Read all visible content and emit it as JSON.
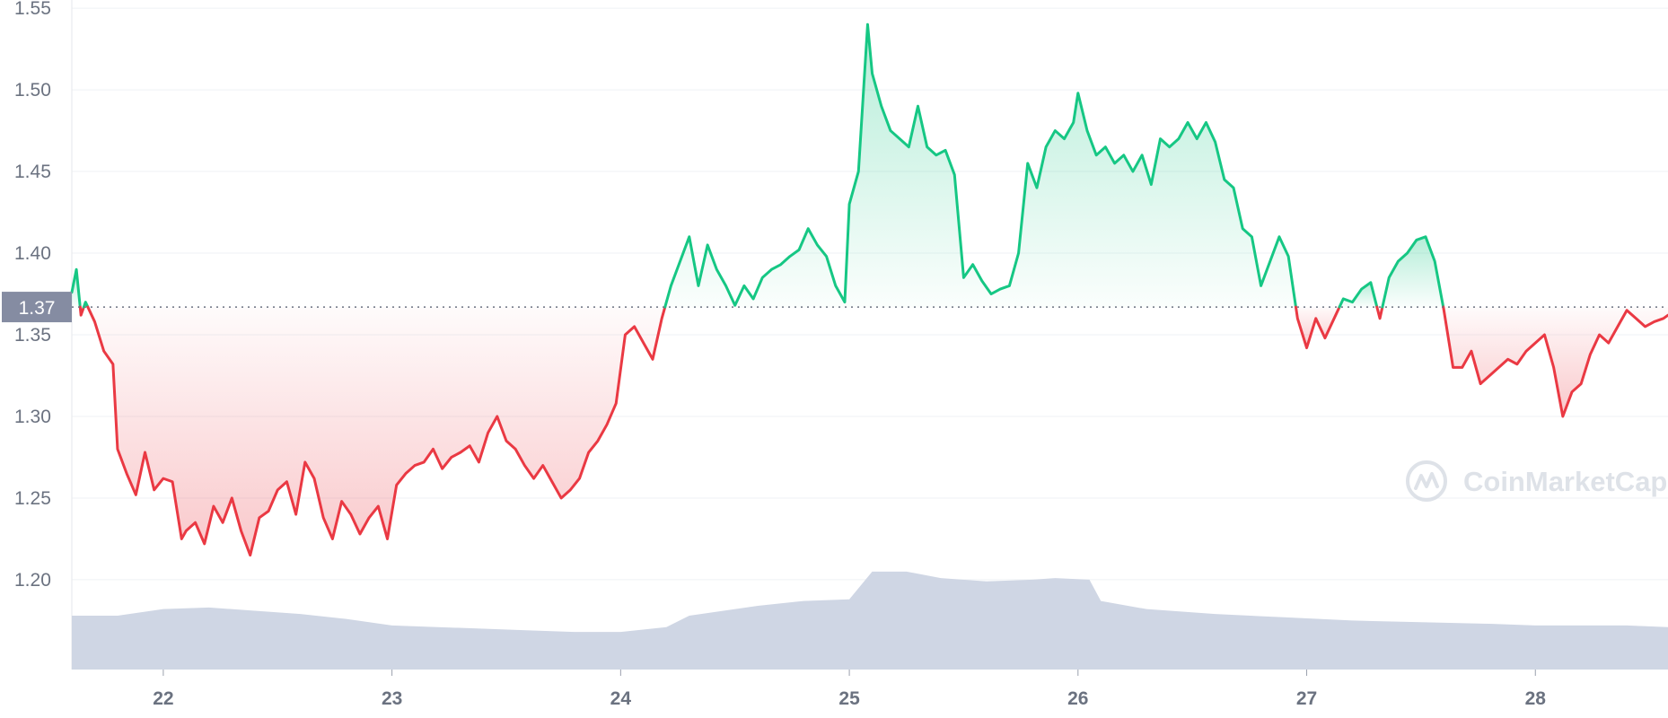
{
  "chart_data": {
    "type": "area",
    "title": "",
    "xlabel": "",
    "ylabel": "",
    "x_tick_labels": [
      "22",
      "23",
      "24",
      "25",
      "26",
      "27",
      "28"
    ],
    "x_range": [
      21.6,
      28.58
    ],
    "y_tick_labels": [
      "1.55",
      "1.50",
      "1.45",
      "1.40",
      "1.35",
      "1.30",
      "1.25",
      "1.20"
    ],
    "y_ticks": [
      1.55,
      1.5,
      1.45,
      1.4,
      1.35,
      1.3,
      1.25,
      1.2
    ],
    "ylim": [
      1.145,
      1.555
    ],
    "grid": true,
    "baseline": {
      "value": 1.367,
      "label": "1.37"
    },
    "colors": {
      "up": "#16c784",
      "down": "#ea3943",
      "volume": "#cfd6e4",
      "grid": "#eff2f5",
      "baseline_badge": "#858ca2"
    },
    "series": [
      {
        "type": "line",
        "x": [
          21.6,
          21.62,
          21.64,
          21.66,
          21.7,
          21.74,
          21.78,
          21.8,
          21.84,
          21.88,
          21.92,
          21.96,
          22.0,
          22.04,
          22.08,
          22.1,
          22.14,
          22.18,
          22.22,
          22.26,
          22.3,
          22.34,
          22.38,
          22.42,
          22.46,
          22.5,
          22.54,
          22.58,
          22.62,
          22.66,
          22.7,
          22.74,
          22.78,
          22.82,
          22.86,
          22.9,
          22.94,
          22.98,
          23.02,
          23.06,
          23.1,
          23.14,
          23.18,
          23.22,
          23.26,
          23.3,
          23.34,
          23.38,
          23.42,
          23.46,
          23.5,
          23.54,
          23.58,
          23.62,
          23.66,
          23.7,
          23.74,
          23.78,
          23.82,
          23.86,
          23.9,
          23.94,
          23.98,
          24.02,
          24.06,
          24.1,
          24.14,
          24.18,
          24.22,
          24.26,
          24.3,
          24.34,
          24.38,
          24.42,
          24.46,
          24.5,
          24.54,
          24.58,
          24.62,
          24.66,
          24.7,
          24.74,
          24.78,
          24.82,
          24.86,
          24.9,
          24.94,
          24.98,
          25.0,
          25.04,
          25.08,
          25.1,
          25.14,
          25.18,
          25.22,
          25.26,
          25.3,
          25.34,
          25.38,
          25.42,
          25.46,
          25.5,
          25.54,
          25.58,
          25.62,
          25.66,
          25.7,
          25.74,
          25.78,
          25.82,
          25.86,
          25.9,
          25.94,
          25.98,
          26.0,
          26.04,
          26.08,
          26.12,
          26.16,
          26.2,
          26.24,
          26.28,
          26.32,
          26.36,
          26.4,
          26.44,
          26.48,
          26.52,
          26.56,
          26.6,
          26.64,
          26.68,
          26.72,
          26.76,
          26.8,
          26.84,
          26.88,
          26.92,
          26.96,
          27.0,
          27.04,
          27.08,
          27.12,
          27.16,
          27.2,
          27.24,
          27.28,
          27.32,
          27.36,
          27.4,
          27.44,
          27.48,
          27.52,
          27.56,
          27.6,
          27.64,
          27.68,
          27.72,
          27.76,
          27.8,
          27.84,
          27.88,
          27.92,
          27.96,
          28.0,
          28.04,
          28.08,
          28.12,
          28.16,
          28.2,
          28.24,
          28.28,
          28.32,
          28.36,
          28.4,
          28.44,
          28.48,
          28.52,
          28.56,
          28.58
        ],
        "y": [
          1.376,
          1.39,
          1.362,
          1.37,
          1.358,
          1.34,
          1.332,
          1.28,
          1.265,
          1.252,
          1.278,
          1.255,
          1.262,
          1.26,
          1.225,
          1.23,
          1.235,
          1.222,
          1.245,
          1.235,
          1.25,
          1.23,
          1.215,
          1.238,
          1.242,
          1.255,
          1.26,
          1.24,
          1.272,
          1.262,
          1.238,
          1.225,
          1.248,
          1.24,
          1.228,
          1.238,
          1.245,
          1.225,
          1.258,
          1.265,
          1.27,
          1.272,
          1.28,
          1.268,
          1.275,
          1.278,
          1.282,
          1.272,
          1.29,
          1.3,
          1.285,
          1.28,
          1.27,
          1.262,
          1.27,
          1.26,
          1.25,
          1.255,
          1.262,
          1.278,
          1.285,
          1.295,
          1.308,
          1.35,
          1.355,
          1.345,
          1.335,
          1.36,
          1.38,
          1.395,
          1.41,
          1.38,
          1.405,
          1.39,
          1.38,
          1.368,
          1.38,
          1.372,
          1.385,
          1.39,
          1.393,
          1.398,
          1.402,
          1.415,
          1.405,
          1.398,
          1.38,
          1.37,
          1.43,
          1.45,
          1.54,
          1.51,
          1.49,
          1.475,
          1.47,
          1.465,
          1.49,
          1.465,
          1.46,
          1.463,
          1.448,
          1.385,
          1.393,
          1.383,
          1.375,
          1.378,
          1.38,
          1.4,
          1.455,
          1.44,
          1.465,
          1.475,
          1.47,
          1.48,
          1.498,
          1.475,
          1.46,
          1.465,
          1.455,
          1.46,
          1.45,
          1.46,
          1.442,
          1.47,
          1.465,
          1.47,
          1.48,
          1.47,
          1.48,
          1.468,
          1.445,
          1.44,
          1.415,
          1.41,
          1.38,
          1.395,
          1.41,
          1.398,
          1.36,
          1.342,
          1.36,
          1.348,
          1.36,
          1.372,
          1.37,
          1.378,
          1.382,
          1.36,
          1.385,
          1.395,
          1.4,
          1.408,
          1.41,
          1.395,
          1.365,
          1.33,
          1.33,
          1.34,
          1.32,
          1.325,
          1.33,
          1.335,
          1.332,
          1.34,
          1.345,
          1.35,
          1.33,
          1.3,
          1.315,
          1.32,
          1.338,
          1.35,
          1.345,
          1.355,
          1.365,
          1.36,
          1.355,
          1.358,
          1.36,
          1.362
        ]
      },
      {
        "name": "volume",
        "type": "area",
        "x": [
          21.6,
          21.8,
          22.0,
          22.2,
          22.4,
          22.6,
          22.8,
          23.0,
          23.2,
          23.4,
          23.6,
          23.8,
          24.0,
          24.2,
          24.3,
          24.6,
          24.8,
          25.0,
          25.1,
          25.25,
          25.4,
          25.6,
          25.8,
          25.9,
          26.05,
          26.1,
          26.3,
          26.6,
          26.9,
          27.2,
          27.5,
          27.8,
          28.0,
          28.2,
          28.4,
          28.58
        ],
        "y": [
          1.178,
          1.178,
          1.182,
          1.183,
          1.181,
          1.179,
          1.176,
          1.172,
          1.171,
          1.17,
          1.169,
          1.168,
          1.168,
          1.171,
          1.178,
          1.184,
          1.187,
          1.188,
          1.205,
          1.205,
          1.201,
          1.199,
          1.2,
          1.201,
          1.2,
          1.187,
          1.182,
          1.179,
          1.177,
          1.175,
          1.174,
          1.173,
          1.172,
          1.172,
          1.172,
          1.171
        ]
      }
    ]
  },
  "watermark": {
    "text": "CoinMarketCap",
    "icon": "coinmarketcap-logo-icon"
  }
}
